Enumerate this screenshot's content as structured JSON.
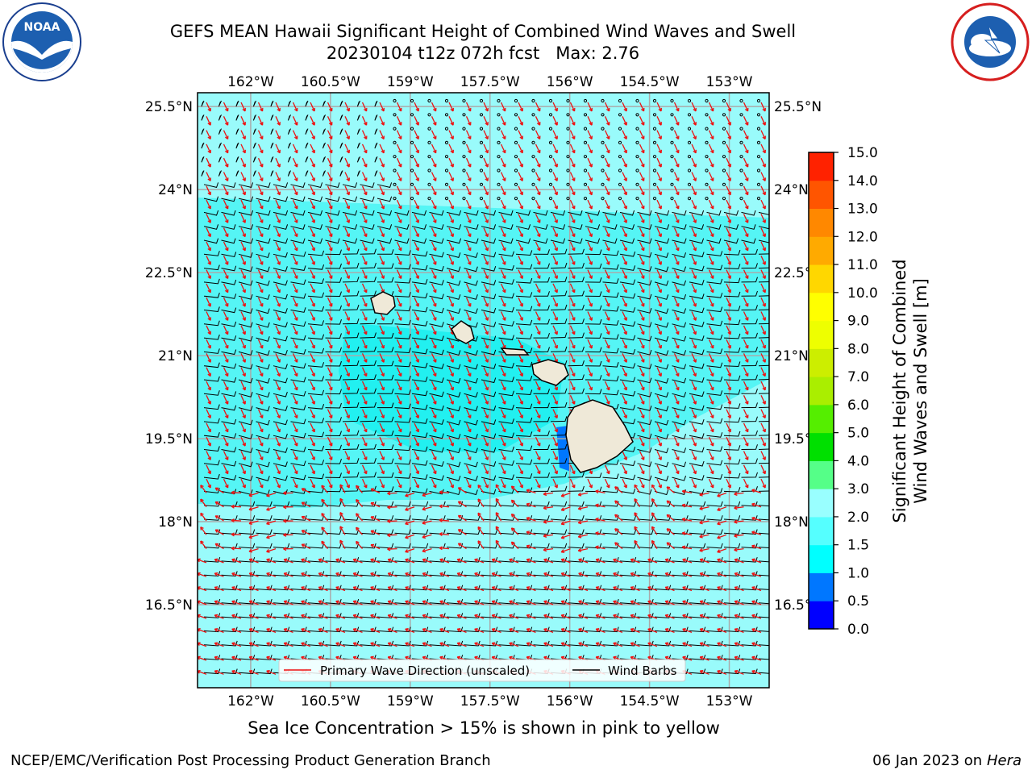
{
  "header": {
    "title_line1": "GEFS MEAN Hawaii Significant Height of Combined Wind Waves and Swell",
    "title_line2": "20230104 t12z 072h fcst   Max: 2.76"
  },
  "logos": {
    "left": {
      "name": "NOAA",
      "icon": "noaa-logo-icon",
      "ring_text": "NATIONAL OCEANIC AND ATMOSPHERIC ADMINISTRATION · U.S. DEPARTMENT OF COMMERCE"
    },
    "right": {
      "icon": "nws-logo-icon",
      "ring_text": "NATIONAL WEATHER SERVICE"
    }
  },
  "map": {
    "lon_ticks": [
      "162°W",
      "160.5°W",
      "159°W",
      "157.5°W",
      "156°W",
      "154.5°W",
      "153°W"
    ],
    "lat_ticks": [
      "25.5°N",
      "24°N",
      "22.5°N",
      "21°N",
      "19.5°N",
      "18°N",
      "16.5°N"
    ],
    "lon_values": [
      -162,
      -160.5,
      -159,
      -157.5,
      -156,
      -154.5,
      -153
    ],
    "lat_values": [
      25.5,
      24,
      22.5,
      21,
      19.5,
      18,
      16.5
    ],
    "extent": {
      "lon_min": -163,
      "lon_max": -152.25,
      "lat_min": 15,
      "lat_max": 25.75
    },
    "ocean_color": "#99fbfb",
    "land_color": "#efe9d8",
    "barb_color": "#000000",
    "wave_arrow_color": "#ee1111",
    "legend": {
      "items": [
        {
          "label": "Primary Wave Direction (unscaled)",
          "color": "#ee1111"
        },
        {
          "label": "Wind Barbs",
          "color": "#000000"
        }
      ]
    },
    "islands": [
      "Kauai",
      "Oahu",
      "Molokai",
      "Lanai",
      "Maui",
      "Kahoolawe",
      "Hawaii"
    ]
  },
  "colorbar": {
    "label_line1": "Significant Height of Combined",
    "label_line2": "Wind Waves and Swell [m]",
    "ticks": [
      "0.0",
      "0.5",
      "1.0",
      "1.5",
      "2.0",
      "3.0",
      "4.0",
      "5.0",
      "6.0",
      "7.0",
      "8.0",
      "9.0",
      "10.0",
      "11.0",
      "12.0",
      "13.0",
      "14.0",
      "15.0"
    ],
    "colors": [
      "#0000ff",
      "#0077ff",
      "#00ffff",
      "#55ffff",
      "#99ffff",
      "#55ff88",
      "#00e000",
      "#55ee00",
      "#aaee00",
      "#ccee00",
      "#eeff00",
      "#ffff00",
      "#ffd700",
      "#ffaa00",
      "#ff8800",
      "#ff5500",
      "#ff2200",
      "#ff0000"
    ]
  },
  "footer": {
    "sea_ice_note": "Sea Ice Concentration > 15% is shown in pink to yellow",
    "credit": "NCEP/EMC/Verification Post Processing Product Generation Branch",
    "date": "06 Jan 2023 on",
    "host": "Hera"
  }
}
